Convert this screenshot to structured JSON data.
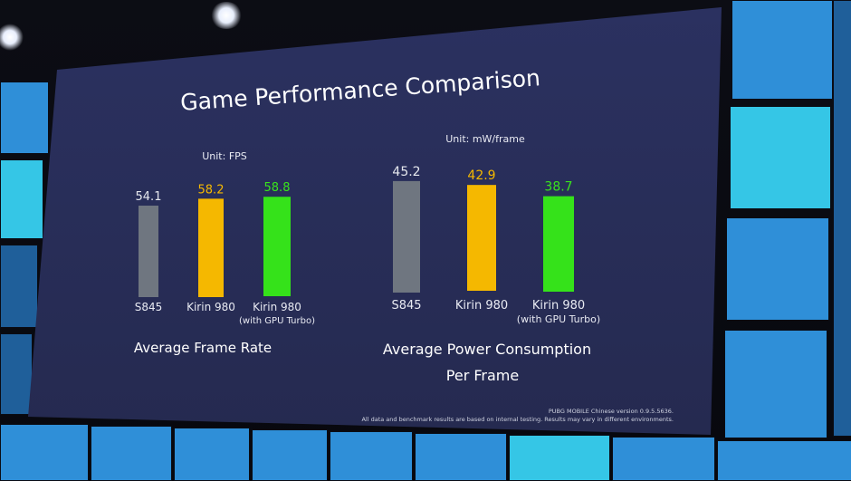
{
  "slide": {
    "title": "Game Performance Comparison",
    "footnote_line1": "PUBG MOBILE Chinese version 0.9.5.5636.",
    "footnote_line2": "All data and benchmark results are based on internal testing. Results may vary in different environments."
  },
  "colors": {
    "screen_bg": "#2a2f58",
    "s845": "#6f7680",
    "kirin980": "#f5b800",
    "kirin980_gpu": "#35e21a",
    "value_s845": "#e6e8ee",
    "value_kirin980": "#f5b800",
    "value_kirin980_gpu": "#39e51c",
    "label_text": "#e8eaf2"
  },
  "chart_data": [
    {
      "type": "bar",
      "title": "Average Frame Rate",
      "unit": "Unit: FPS",
      "categories": [
        "S845",
        "Kirin 980",
        "Kirin 980"
      ],
      "category_sublabels": [
        "",
        "",
        "(with GPU Turbo)"
      ],
      "values": [
        54.1,
        58.2,
        58.8
      ],
      "value_labels": [
        "54.1",
        "58.2",
        "58.8"
      ],
      "ylim": [
        0,
        60
      ],
      "grid": false
    },
    {
      "type": "bar",
      "title": "Average Power Consumption",
      "title_line2": "Per Frame",
      "unit": "Unit: mW/frame",
      "categories": [
        "S845",
        "Kirin 980",
        "Kirin 980"
      ],
      "category_sublabels": [
        "",
        "",
        "(with GPU Turbo)"
      ],
      "values": [
        45.2,
        42.9,
        38.7
      ],
      "value_labels": [
        "45.2",
        "42.9",
        "38.7"
      ],
      "ylim": [
        0,
        47
      ],
      "grid": false
    }
  ]
}
